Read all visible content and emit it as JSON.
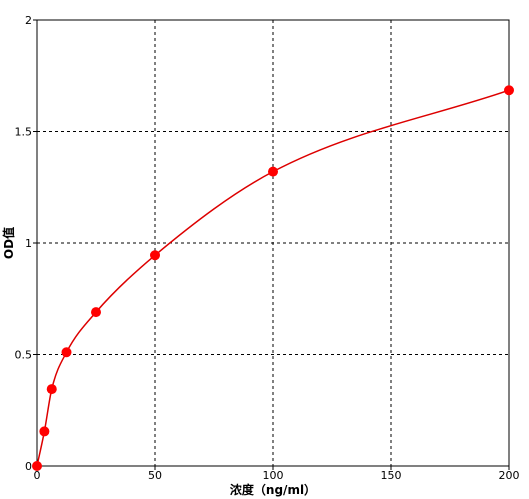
{
  "chart_data": {
    "type": "scatter",
    "xlabel": "浓度（ng/ml）",
    "ylabel": "OD值",
    "xlim": [
      0,
      200
    ],
    "ylim": [
      0,
      2
    ],
    "x_ticks": [
      "0",
      "50",
      "100",
      "150",
      "200"
    ],
    "y_ticks": [
      "0",
      "0.5",
      "1",
      "1.5",
      "2"
    ],
    "grid": true,
    "legend": "none",
    "colors": {
      "series": "#ff0000",
      "curve": "#dd0000",
      "grid": "#000000"
    },
    "series": [
      {
        "x": [
          0,
          3.125,
          6.25,
          12.5,
          25,
          50,
          100,
          200
        ],
        "y": [
          0.0,
          0.155,
          0.345,
          0.51,
          0.69,
          0.945,
          1.32,
          1.685
        ]
      }
    ]
  }
}
